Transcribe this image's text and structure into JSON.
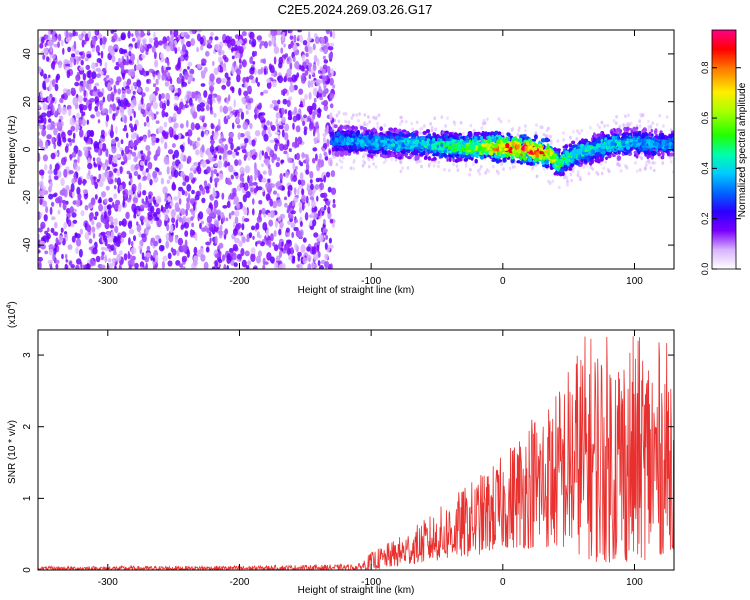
{
  "title": "C2E5.2024.269.03.26.G17",
  "chart_data": [
    {
      "type": "heatmap",
      "name": "spectrogram",
      "xlabel": "Height of straight line (km)",
      "ylabel": "Frequency (Hz)",
      "xlim": [
        -353,
        130
      ],
      "ylim": [
        -50,
        50
      ],
      "xticks": [
        -300,
        -200,
        -100,
        0,
        100
      ],
      "yticks": [
        -40,
        -20,
        0,
        20,
        40
      ],
      "colorbar": {
        "label": "Normalized spectral amplitude",
        "range": [
          0,
          0.95
        ],
        "ticks": [
          "0.0",
          "0.2",
          "0.4",
          "0.6",
          "0.8"
        ],
        "tick_values": [
          0,
          0.2,
          0.4,
          0.6,
          0.8
        ]
      },
      "description_regions": [
        {
          "x_range": [
            -353,
            -130
          ],
          "freq_range": [
            -50,
            50
          ],
          "amplitude": "low (0.05-0.15), broadband noise"
        },
        {
          "x_range": [
            -130,
            130
          ],
          "freq_center": 2,
          "freq_halfwidth": 6,
          "amplitude": "0.2-0.9, narrow band near 0 Hz"
        }
      ],
      "band_center_curve": {
        "x": [
          -130,
          -100,
          -60,
          -30,
          0,
          20,
          35,
          42,
          55,
          80,
          100,
          130
        ],
        "freq": [
          4,
          3,
          2,
          1,
          1,
          0,
          -2,
          -6,
          -2,
          2,
          3,
          2
        ]
      },
      "peak_amplitude": {
        "x": [
          -130,
          -90,
          -50,
          -20,
          0,
          15,
          30,
          45,
          70,
          100,
          130
        ],
        "amp": [
          0.35,
          0.4,
          0.45,
          0.6,
          0.8,
          0.9,
          0.85,
          0.5,
          0.45,
          0.4,
          0.35
        ]
      }
    },
    {
      "type": "line",
      "name": "snr",
      "xlabel": "Height of straight line (km)",
      "ylabel": "SNR (10 * v/v)",
      "scale_label": "(x10",
      "scale_exp": "4",
      "scale_close": ")",
      "xlim": [
        -353,
        130
      ],
      "ylim": [
        0,
        3.35
      ],
      "xticks": [
        -300,
        -200,
        -100,
        0,
        100
      ],
      "yticks": [
        0,
        1,
        2,
        3
      ],
      "color": "#e8302e",
      "envelope": {
        "x": [
          -353,
          -200,
          -110,
          -100,
          -80,
          -60,
          -40,
          -20,
          0,
          20,
          40,
          60,
          70,
          80,
          100,
          120,
          130
        ],
        "upper": [
          0.05,
          0.06,
          0.08,
          0.25,
          0.45,
          0.7,
          1.0,
          1.3,
          1.6,
          2.2,
          2.5,
          3.3,
          3.35,
          3.3,
          3.3,
          3.2,
          3.2
        ],
        "lower": [
          0.0,
          0.0,
          0.0,
          0.0,
          0.05,
          0.1,
          0.15,
          0.2,
          0.3,
          0.3,
          0.3,
          0.2,
          0.1,
          0.1,
          0.1,
          0.2,
          0.3
        ]
      }
    }
  ]
}
